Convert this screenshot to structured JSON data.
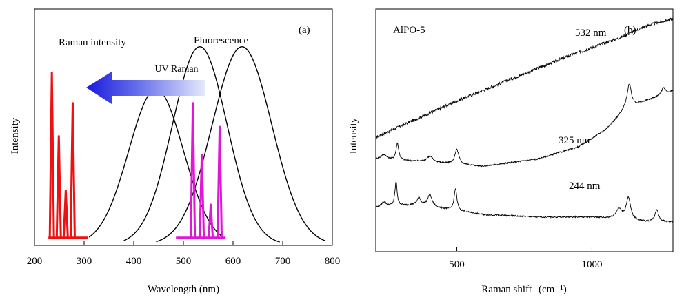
{
  "chart_data": [
    {
      "type": "line",
      "panel_label": "(a)",
      "title": "",
      "xlabel": "Wavelength (nm)",
      "ylabel": "Intensity",
      "xlim": [
        200,
        800
      ],
      "ylim": [
        0,
        1.0
      ],
      "xticks": [
        200,
        300,
        400,
        500,
        600,
        700,
        800
      ],
      "annotations": {
        "raman_intensity": "Raman intensity",
        "fluorescence": "Fluorescence",
        "uv_raman": "UV Raman"
      },
      "series": [
        {
          "name": "Fluorescence band 1",
          "shape": "gaussian",
          "center": 445,
          "peak": 0.66,
          "sigma": 55,
          "x_range": [
            310,
            580
          ],
          "color": "#000000"
        },
        {
          "name": "Fluorescence band 2",
          "shape": "gaussian",
          "center": 533,
          "peak": 0.84,
          "sigma": 55,
          "x_range": [
            380,
            695
          ],
          "color": "#000000"
        },
        {
          "name": "Fluorescence band 3",
          "shape": "gaussian",
          "center": 618,
          "peak": 0.84,
          "sigma": 60,
          "x_range": [
            445,
            785
          ],
          "color": "#000000"
        },
        {
          "name": "UV Raman lines",
          "shape": "sticks",
          "color": "#ee1111",
          "baseline_range": [
            228,
            307
          ],
          "peaks": [
            {
              "x": 235,
              "y": 0.73
            },
            {
              "x": 249,
              "y": 0.46
            },
            {
              "x": 263,
              "y": 0.23
            },
            {
              "x": 277,
              "y": 0.6
            }
          ]
        },
        {
          "name": "Visible Raman lines",
          "shape": "sticks",
          "color": "#e016d8",
          "baseline_range": [
            485,
            585
          ],
          "peaks": [
            {
              "x": 519,
              "y": 0.6
            },
            {
              "x": 537,
              "y": 0.38
            },
            {
              "x": 555,
              "y": 0.17
            },
            {
              "x": 573,
              "y": 0.5
            }
          ]
        }
      ]
    },
    {
      "type": "line",
      "panel_label": "(b)",
      "title": "",
      "sample_label": "AlPO-5",
      "xlabel": "Raman shift",
      "xlabel_unit": "(cm⁻¹)",
      "ylabel": "Intensity",
      "xlim": [
        200,
        1300
      ],
      "ylim": [
        0,
        1.0
      ],
      "xticks": [
        500,
        1000
      ],
      "series": [
        {
          "name": "532 nm",
          "shape": "rising_background",
          "points": [
            [
              200,
              0.47
            ],
            [
              300,
              0.52
            ],
            [
              500,
              0.62
            ],
            [
              700,
              0.71
            ],
            [
              900,
              0.8
            ],
            [
              1100,
              0.88
            ],
            [
              1200,
              0.93
            ],
            [
              1300,
              0.96
            ]
          ],
          "noise": 0.006
        },
        {
          "name": "325 nm",
          "shape": "spectrum",
          "baseline_points": [
            [
              200,
              0.38
            ],
            [
              350,
              0.37
            ],
            [
              600,
              0.35
            ],
            [
              800,
              0.38
            ],
            [
              950,
              0.43
            ],
            [
              1050,
              0.5
            ],
            [
              1120,
              0.58
            ],
            [
              1200,
              0.62
            ],
            [
              1300,
              0.66
            ]
          ],
          "peaks": [
            {
              "x": 230,
              "height": 0.02,
              "width": 12
            },
            {
              "x": 280,
              "height": 0.07,
              "width": 6
            },
            {
              "x": 400,
              "height": 0.025,
              "width": 14
            },
            {
              "x": 500,
              "height": 0.06,
              "width": 9
            },
            {
              "x": 1138,
              "height": 0.1,
              "width": 10
            },
            {
              "x": 1265,
              "height": 0.03,
              "width": 8
            }
          ],
          "noise": 0.003
        },
        {
          "name": "244 nm",
          "shape": "spectrum",
          "baseline_points": [
            [
              200,
              0.18
            ],
            [
              350,
              0.19
            ],
            [
              600,
              0.15
            ],
            [
              800,
              0.14
            ],
            [
              1000,
              0.14
            ],
            [
              1200,
              0.12
            ],
            [
              1300,
              0.12
            ]
          ],
          "peaks": [
            {
              "x": 230,
              "height": 0.02,
              "width": 10
            },
            {
              "x": 275,
              "height": 0.1,
              "width": 5
            },
            {
              "x": 360,
              "height": 0.03,
              "width": 8
            },
            {
              "x": 400,
              "height": 0.05,
              "width": 10
            },
            {
              "x": 495,
              "height": 0.09,
              "width": 6
            },
            {
              "x": 1100,
              "height": 0.04,
              "width": 14
            },
            {
              "x": 1135,
              "height": 0.09,
              "width": 10
            },
            {
              "x": 1240,
              "height": 0.05,
              "width": 8
            }
          ],
          "noise": 0.003
        }
      ]
    }
  ]
}
